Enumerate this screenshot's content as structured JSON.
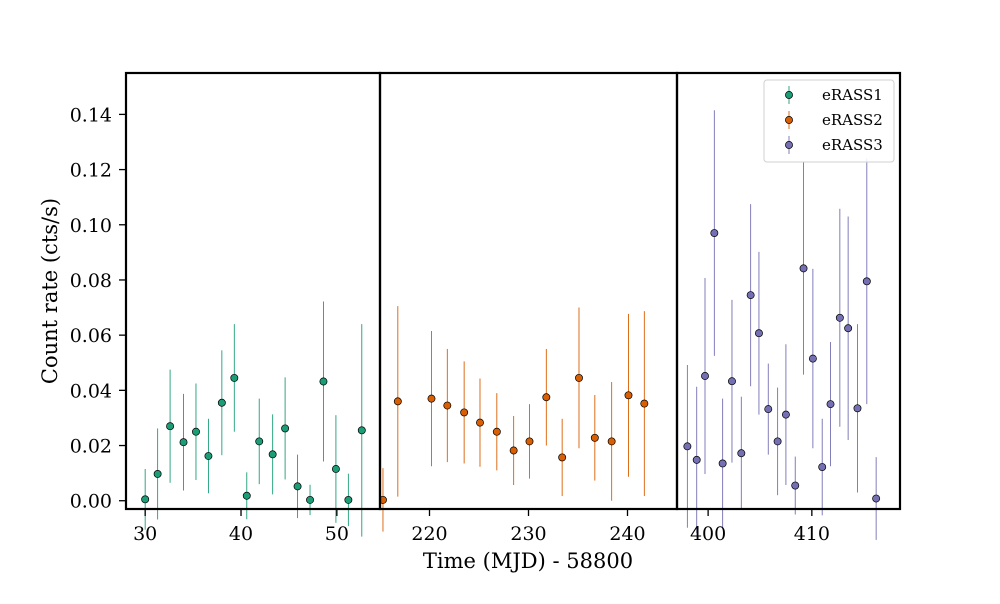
{
  "chart_data": {
    "type": "scatter",
    "subtype": "errorbar-broken-x-axis",
    "xlabel": "Time (MJD) - 58800",
    "ylabel": "Count rate (cts/s)",
    "ylim": [
      -0.003,
      0.155
    ],
    "yticks": [
      0.0,
      0.02,
      0.04,
      0.06,
      0.08,
      0.1,
      0.12,
      0.14
    ],
    "grid": false,
    "legend_position": "top-right",
    "panels": [
      {
        "xlim": [
          28.0,
          54.5
        ],
        "xticks": [
          30,
          40,
          50
        ]
      },
      {
        "xlim": [
          215.0,
          245.0
        ],
        "xticks": [
          220,
          230,
          240
        ]
      },
      {
        "xlim": [
          397.0,
          418.5
        ],
        "xticks": [
          400,
          410
        ]
      }
    ],
    "series": [
      {
        "name": "eRASS1",
        "color": "#1b9e77",
        "panel": 0,
        "points": [
          {
            "x": 30.0,
            "y": 0.0005,
            "err": 0.011
          },
          {
            "x": 31.3,
            "y": 0.0097,
            "err": 0.0165
          },
          {
            "x": 32.6,
            "y": 0.027,
            "err": 0.0205
          },
          {
            "x": 34.0,
            "y": 0.0212,
            "err": 0.0175
          },
          {
            "x": 35.3,
            "y": 0.025,
            "err": 0.0175
          },
          {
            "x": 36.6,
            "y": 0.0162,
            "err": 0.0135
          },
          {
            "x": 38.0,
            "y": 0.0355,
            "err": 0.019
          },
          {
            "x": 39.3,
            "y": 0.0445,
            "err": 0.0195
          },
          {
            "x": 40.6,
            "y": 0.0018,
            "err": 0.0085
          },
          {
            "x": 41.9,
            "y": 0.0215,
            "err": 0.0155
          },
          {
            "x": 43.3,
            "y": 0.0168,
            "err": 0.0145
          },
          {
            "x": 44.6,
            "y": 0.0262,
            "err": 0.0185
          },
          {
            "x": 45.9,
            "y": 0.0052,
            "err": 0.0115
          },
          {
            "x": 47.2,
            "y": 0.0003,
            "err": 0.0055
          },
          {
            "x": 48.6,
            "y": 0.0432,
            "err": 0.029
          },
          {
            "x": 49.9,
            "y": 0.0115,
            "err": 0.0195
          },
          {
            "x": 51.2,
            "y": 0.0003,
            "err": 0.0095
          },
          {
            "x": 52.6,
            "y": 0.0255,
            "err": 0.0385
          }
        ]
      },
      {
        "name": "eRASS2",
        "color": "#d95f02",
        "panel": 1,
        "points": [
          {
            "x": 215.3,
            "y": 0.0003,
            "err": 0.0115
          },
          {
            "x": 216.8,
            "y": 0.036,
            "err": 0.0345
          },
          {
            "x": 220.2,
            "y": 0.037,
            "err": 0.0245
          },
          {
            "x": 221.8,
            "y": 0.0345,
            "err": 0.0205
          },
          {
            "x": 223.5,
            "y": 0.032,
            "err": 0.0185
          },
          {
            "x": 225.1,
            "y": 0.0283,
            "err": 0.016
          },
          {
            "x": 226.8,
            "y": 0.025,
            "err": 0.014
          },
          {
            "x": 228.5,
            "y": 0.0182,
            "err": 0.0125
          },
          {
            "x": 230.1,
            "y": 0.0215,
            "err": 0.0135
          },
          {
            "x": 231.8,
            "y": 0.0375,
            "err": 0.0175
          },
          {
            "x": 233.4,
            "y": 0.0157,
            "err": 0.014
          },
          {
            "x": 235.1,
            "y": 0.0445,
            "err": 0.0255
          },
          {
            "x": 236.7,
            "y": 0.0228,
            "err": 0.0155
          },
          {
            "x": 238.4,
            "y": 0.0215,
            "err": 0.0215
          },
          {
            "x": 240.1,
            "y": 0.0382,
            "err": 0.0295
          },
          {
            "x": 241.7,
            "y": 0.0352,
            "err": 0.0335
          }
        ]
      },
      {
        "name": "eRASS3",
        "color": "#7570b3",
        "panel": 2,
        "points": [
          {
            "x": 398.0,
            "y": 0.0197,
            "err": 0.0295
          },
          {
            "x": 398.9,
            "y": 0.0148,
            "err": 0.0265
          },
          {
            "x": 399.7,
            "y": 0.0452,
            "err": 0.0355
          },
          {
            "x": 400.6,
            "y": 0.097,
            "err": 0.0445
          },
          {
            "x": 401.4,
            "y": 0.0135,
            "err": 0.0235
          },
          {
            "x": 402.3,
            "y": 0.0433,
            "err": 0.0295
          },
          {
            "x": 403.2,
            "y": 0.0172,
            "err": 0.0205
          },
          {
            "x": 404.1,
            "y": 0.0745,
            "err": 0.033
          },
          {
            "x": 404.9,
            "y": 0.0607,
            "err": 0.0295
          },
          {
            "x": 405.8,
            "y": 0.0332,
            "err": 0.0165
          },
          {
            "x": 406.7,
            "y": 0.0215,
            "err": 0.0195
          },
          {
            "x": 407.5,
            "y": 0.0312,
            "err": 0.0255
          },
          {
            "x": 408.4,
            "y": 0.0055,
            "err": 0.0105
          },
          {
            "x": 409.2,
            "y": 0.0842,
            "err": 0.0385
          },
          {
            "x": 410.1,
            "y": 0.0515,
            "err": 0.0325
          },
          {
            "x": 411.0,
            "y": 0.0122,
            "err": 0.0175
          },
          {
            "x": 411.8,
            "y": 0.035,
            "err": 0.0225
          },
          {
            "x": 412.7,
            "y": 0.0663,
            "err": 0.0395
          },
          {
            "x": 413.5,
            "y": 0.0625,
            "err": 0.0405
          },
          {
            "x": 414.4,
            "y": 0.0335,
            "err": 0.0305
          },
          {
            "x": 415.3,
            "y": 0.0795,
            "err": 0.0445
          },
          {
            "x": 416.2,
            "y": 0.0008,
            "err": 0.015
          }
        ]
      }
    ]
  }
}
